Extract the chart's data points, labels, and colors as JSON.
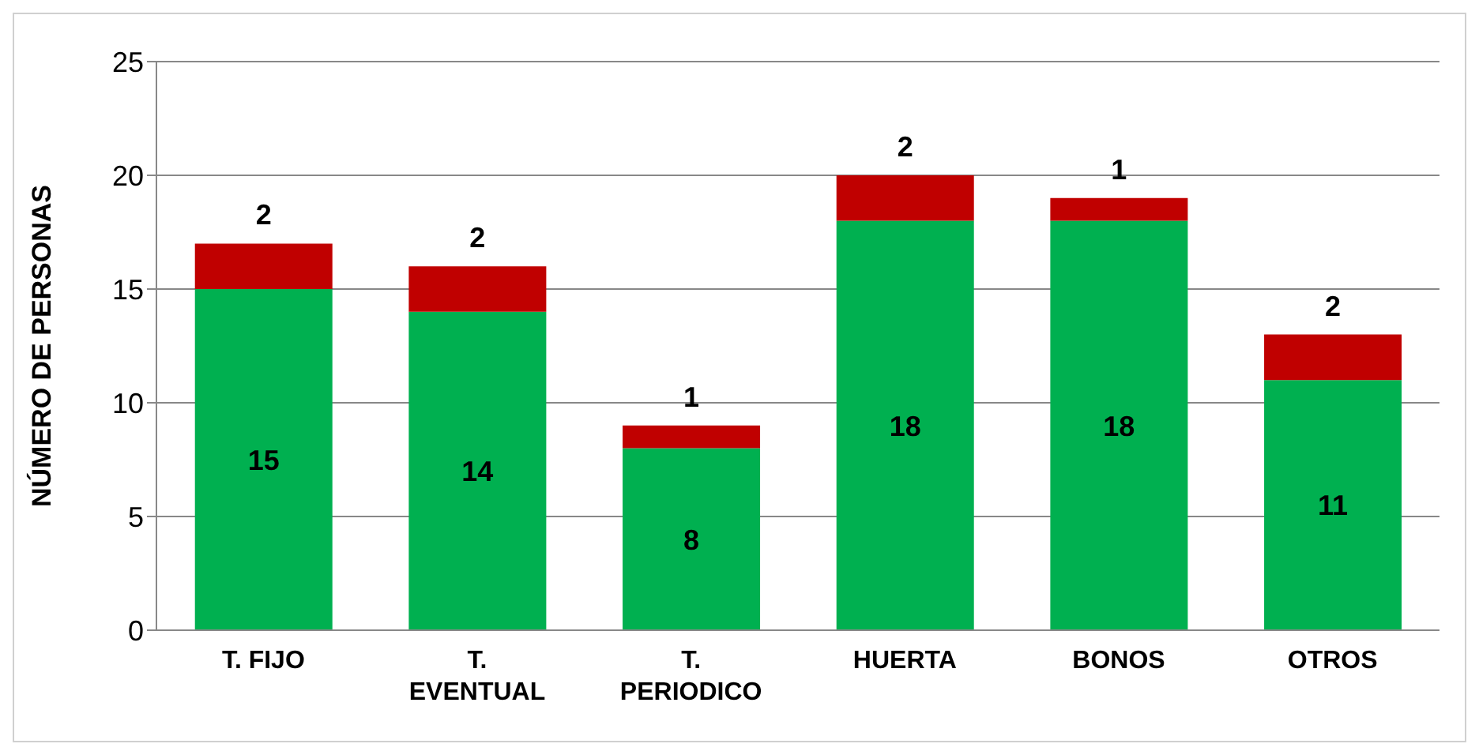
{
  "chart_data": {
    "type": "bar",
    "stacked": true,
    "ylabel": "NÚMERO DE PERSONAS",
    "categories": [
      "T. FIJO",
      "T. EVENTUAL",
      "T. PERIODICO",
      "HUERTA",
      "BONOS",
      "OTROS"
    ],
    "series": [
      {
        "color": "#00b050",
        "values": [
          15,
          14,
          8,
          18,
          18,
          11
        ]
      },
      {
        "color": "#c00000",
        "values": [
          2,
          2,
          1,
          2,
          1,
          2
        ]
      }
    ],
    "ylim": [
      0,
      25
    ],
    "yticks": [
      0,
      5,
      10,
      15,
      20,
      25
    ],
    "grid": "y",
    "legend": false,
    "data_labels": true
  }
}
